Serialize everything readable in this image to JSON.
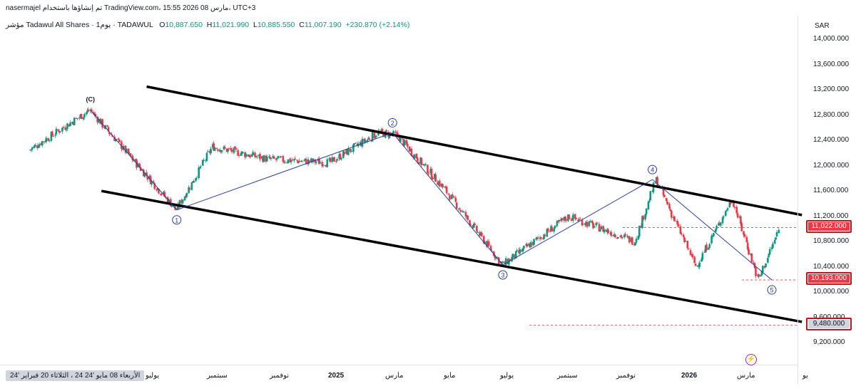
{
  "header": {
    "line1": "nasermajel تم إنشاؤها باستخدام TradingView.com، 15:55 2026 مارس 08، UTC+3",
    "symbol": "مؤشر Tadawul All Shares · 1يوم · TADAWUL",
    "o_key": "O",
    "o_val": "10,887.650",
    "h_key": "H",
    "h_val": "11,021.990",
    "l_key": "L",
    "l_val": "10,885.550",
    "c_key": "C",
    "c_val": "11,007.190",
    "change": "+230.870 (+2.14%)"
  },
  "axis": {
    "unit": "SAR",
    "y_ticks": [
      "14,000.000",
      "13,600.000",
      "13,200.000",
      "12,800.000",
      "12,400.000",
      "12,000.000",
      "11,600.000",
      "11,200.000",
      "10,800.000",
      "10,400.000",
      "10,000.000",
      "9,600.000",
      "9,200.000"
    ],
    "x_ticks": [
      "يوليو",
      "سبتمبر",
      "نوفمبر",
      "2025",
      "مارس",
      "مايو",
      "يوليو",
      "سبتمبر",
      "نوفمبر",
      "2026",
      "مارس",
      "يو"
    ],
    "date_chip": "الأربعاء 08 مايو '24   24 ،   الثلاثاء 20 فبراير '24"
  },
  "price_labels": {
    "last": "11,022.000",
    "low": "10,193.000",
    "target": "9,480.000"
  },
  "colors": {
    "up": "#089981",
    "down": "#f23645",
    "wave": "#2c3e9a",
    "channel": "#000000"
  },
  "chart_data": {
    "type": "candlestick",
    "title": "Tadawul All Shares Index, 1D",
    "ylim": [
      9000,
      14300
    ],
    "series": [
      {
        "name": "close_path",
        "x": [
          "2024-02-20",
          "2024-04-20",
          "2024-07-15",
          "2024-08-20",
          "2024-10-15",
          "2024-12-15",
          "2025-02-01",
          "2025-02-20",
          "2025-04-10",
          "2025-06-05",
          "2025-08-10",
          "2025-10-15",
          "2025-11-05",
          "2025-12-15",
          "2026-01-20",
          "2026-02-15",
          "2026-03-08"
        ],
        "values": [
          12250,
          12880,
          11300,
          12300,
          12100,
          12050,
          12520,
          12480,
          11600,
          10430,
          11200,
          10800,
          11780,
          10400,
          11480,
          10193,
          11007
        ]
      }
    ],
    "wave_points": [
      {
        "label": "(C)",
        "date": "2024-04-20",
        "value": 12880
      },
      {
        "label": "1",
        "date": "2024-07-15",
        "value": 11300
      },
      {
        "label": "2",
        "date": "2025-02-15",
        "value": 12520
      },
      {
        "label": "3",
        "date": "2025-06-05",
        "value": 10430
      },
      {
        "label": "4",
        "date": "2025-11-01",
        "value": 11780
      },
      {
        "label": "5",
        "date": "2026-02-28",
        "value": 10193
      }
    ],
    "channel": {
      "upper": [
        {
          "date": "2024-06-15",
          "value": 13250
        },
        {
          "date": "2026-03-30",
          "value": 11220
        }
      ],
      "lower": [
        {
          "date": "2024-05-01",
          "value": 11600
        },
        {
          "date": "2026-03-30",
          "value": 9530
        }
      ]
    },
    "horizontal_levels": [
      11022,
      10193,
      9480
    ]
  }
}
